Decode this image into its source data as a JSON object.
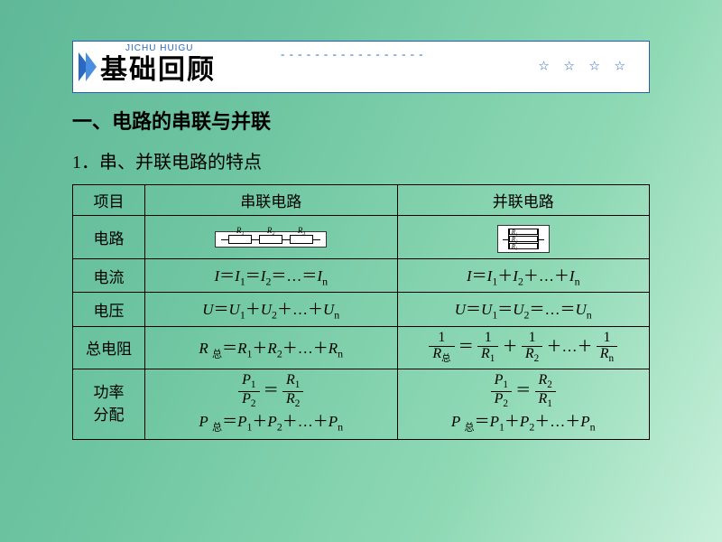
{
  "banner": {
    "pinyin": "JICHU  HUIGU",
    "title": "基础回顾",
    "dashes": "- - - - - - - - - - - - - - - - -",
    "stars": "☆ ☆ ☆ ☆"
  },
  "heading1": "一、电路的串联与并联",
  "heading2": "1．串、并联电路的特点",
  "table": {
    "header": {
      "c0": "项目",
      "c1": "串联电路",
      "c2": "并联电路"
    },
    "rows": {
      "circuit_label": "电路",
      "current_label": "电流",
      "voltage_label": "电压",
      "resistance_label": "总电阻",
      "power_label_l1": "功率",
      "power_label_l2": "分配"
    },
    "series": {
      "r_labels": [
        "R₁",
        "R₂",
        "R₃"
      ],
      "current": "I＝I₁＝I₂＝…＝Iₙ",
      "voltage": "U＝U₁＋U₂＋…＋Uₙ",
      "resistance": "R 总＝R₁＋R₂＋…＋Rₙ",
      "power_ratio_top": "P₁",
      "power_ratio_bot": "P₂",
      "power_ratio_top_r": "R₁",
      "power_ratio_bot_r": "R₂",
      "power_sum": "P 总＝P₁＋P₂＋…＋Pₙ"
    },
    "parallel": {
      "r_labels": [
        "R₁",
        "R₂",
        "R₃"
      ],
      "current": "I＝I₁＋I₂＋…＋Iₙ",
      "voltage": "U＝U₁＝U₂＝…＝Uₙ",
      "res_frac_left_top": "1",
      "res_frac_left_bot": "R总",
      "res_frac_r1_top": "1",
      "res_frac_r1_bot": "R₁",
      "res_frac_r2_top": "1",
      "res_frac_r2_bot": "R₂",
      "res_frac_rn_top": "1",
      "res_frac_rn_bot": "Rₙ",
      "power_ratio_top": "P₁",
      "power_ratio_bot": "P₂",
      "power_ratio_top_r": "R₂",
      "power_ratio_bot_r": "R₁",
      "power_sum": "P 总＝P₁＋P₂＋…＋Pₙ"
    }
  },
  "colors": {
    "banner_border": "#2a5fa8",
    "chevron1": "#2969c0",
    "chevron2": "#4a8ee0",
    "text": "#000000",
    "bg_stops": [
      "#5fb898",
      "#6dc4a0",
      "#8fd9b5",
      "#c8f0da"
    ]
  }
}
